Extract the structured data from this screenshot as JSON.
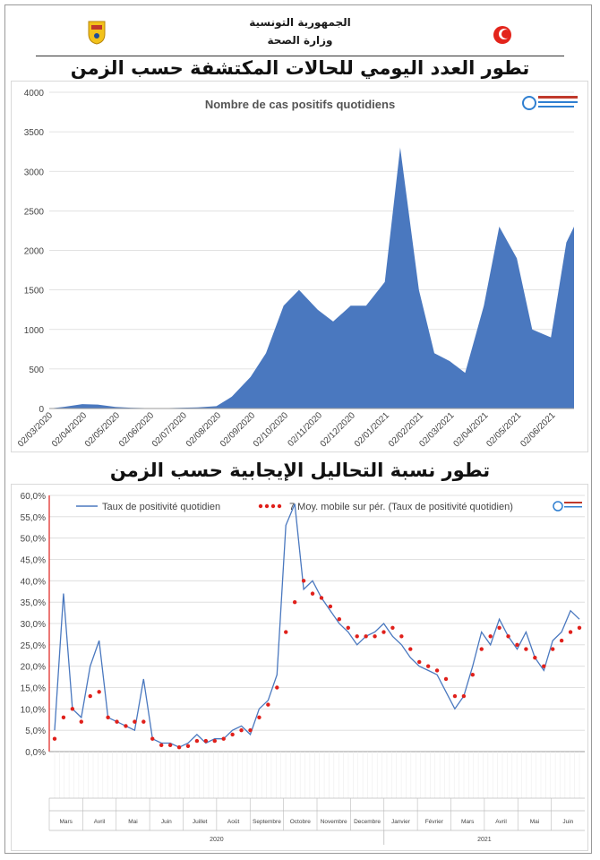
{
  "header": {
    "republic": "الجمهورية التونسية",
    "ministry": "وزارة الصحة",
    "title_cases": "تطور العدد اليومي للحالات المكتشفة حسب الزمن",
    "title_positivity": "تطور نسبة التحاليل الإيجابية حسب الزمن"
  },
  "icons": {
    "left_emblem": "tunisia-coat-of-arms",
    "right_logo": "red-crescent-logo",
    "chart_logo": "observatoire-logo"
  },
  "colors": {
    "area_fill": "#4a78bf",
    "line": "#4a78bf",
    "moving_avg": "#e0201b",
    "grid": "#d9d9d9"
  },
  "chart_data": [
    {
      "type": "area",
      "title": "Nombre de cas positifs quotidiens",
      "ylim": [
        0,
        4000
      ],
      "yticks": [
        "0",
        "500",
        "1000",
        "1500",
        "2000",
        "2500",
        "3000",
        "3500",
        "4000"
      ],
      "xticks": [
        "02/03/2020",
        "02/04/2020",
        "02/05/2020",
        "02/06/2020",
        "02/07/2020",
        "02/08/2020",
        "02/09/2020",
        "02/10/2020",
        "02/11/2020",
        "02/12/2020",
        "02/01/2021",
        "02/02/2021",
        "02/03/2021",
        "02/04/2021",
        "02/05/2021",
        "02/06/2021"
      ],
      "grid": "horizontal",
      "series": [
        {
          "x": [
            "02/03/2020",
            "15/03/2020",
            "01/04/2020",
            "15/04/2020",
            "01/05/2020",
            "15/05/2020",
            "01/06/2020",
            "15/06/2020",
            "01/07/2020",
            "15/07/2020",
            "01/08/2020",
            "15/08/2020",
            "01/09/2020",
            "15/09/2020",
            "01/10/2020",
            "15/10/2020",
            "01/11/2020",
            "15/11/2020",
            "01/12/2020",
            "15/12/2020",
            "01/01/2021",
            "15/01/2021",
            "01/02/2021",
            "15/02/2021",
            "01/03/2021",
            "15/03/2021",
            "01/04/2021",
            "15/04/2021",
            "01/05/2021",
            "15/05/2021",
            "01/06/2021",
            "15/06/2021",
            "22/06/2021"
          ],
          "values": [
            0,
            20,
            55,
            50,
            20,
            10,
            5,
            5,
            10,
            15,
            30,
            150,
            400,
            700,
            1300,
            1500,
            1250,
            1100,
            1300,
            1300,
            1600,
            3300,
            1500,
            700,
            600,
            450,
            1300,
            2300,
            1900,
            1000,
            900,
            2100,
            2300
          ]
        }
      ]
    },
    {
      "type": "line",
      "ylim": [
        0,
        60
      ],
      "yticks": [
        "0,0%",
        "5,0%",
        "10,0%",
        "15,0%",
        "20,0%",
        "25,0%",
        "30,0%",
        "35,0%",
        "40,0%",
        "45,0%",
        "50,0%",
        "55,0%",
        "60,0%"
      ],
      "months": [
        "Mars",
        "Avril",
        "Mai",
        "Juin",
        "Juillet",
        "Août",
        "Septembre",
        "Octobre",
        "Novembre",
        "Decembre",
        "Janvier",
        "Février",
        "Mars",
        "Avril",
        "Mai",
        "Juin"
      ],
      "years": [
        "2020",
        "2021"
      ],
      "grid": "horizontal",
      "legend_position": "top",
      "series": [
        {
          "name": "Taux de positivité quotidien",
          "values": [
            5,
            37,
            10,
            8,
            20,
            26,
            8,
            7,
            6,
            5,
            17,
            3,
            2,
            2,
            1,
            2,
            4,
            2,
            3,
            3,
            5,
            6,
            4,
            10,
            12,
            18,
            53,
            58,
            38,
            40,
            36,
            33,
            30,
            28,
            25,
            27,
            28,
            30,
            27,
            25,
            22,
            20,
            19,
            18,
            14,
            10,
            13,
            20,
            28,
            25,
            31,
            27,
            24,
            28,
            22,
            19,
            26,
            28,
            33,
            31
          ]
        },
        {
          "name": "7 Moy. mobile sur pér. (Taux de positivité quotidien)",
          "values": [
            3,
            8,
            10,
            7,
            13,
            14,
            8,
            7,
            6,
            7,
            7,
            3,
            1.5,
            1.5,
            1,
            1.3,
            2.5,
            2.5,
            2.5,
            3,
            4,
            5,
            5,
            8,
            11,
            15,
            28,
            35,
            40,
            37,
            36,
            34,
            31,
            29,
            27,
            27,
            27,
            28,
            29,
            27,
            24,
            21,
            20,
            19,
            17,
            13,
            13,
            18,
            24,
            27,
            29,
            27,
            25,
            24,
            22,
            20,
            24,
            26,
            28,
            29
          ]
        }
      ]
    }
  ]
}
